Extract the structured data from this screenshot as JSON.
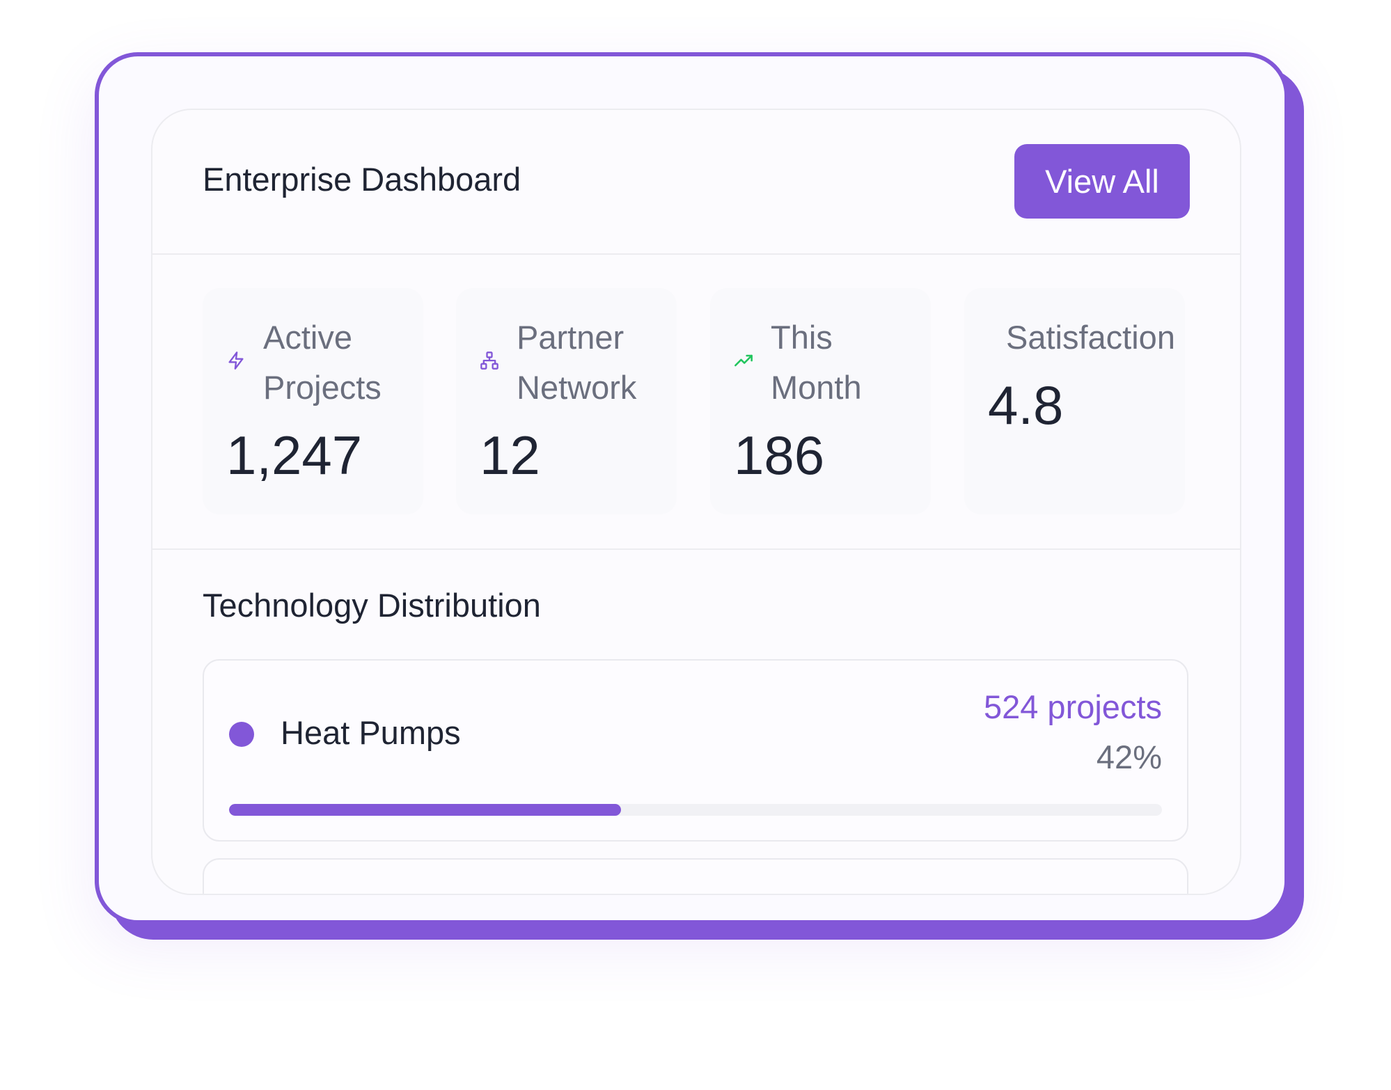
{
  "colors": {
    "accent": "#8257d8",
    "trend_up": "#22c55e",
    "text_primary": "#1f2433",
    "text_secondary": "#6b6f7e"
  },
  "header": {
    "title": "Enterprise Dashboard",
    "view_all_label": "View All"
  },
  "stats": [
    {
      "icon": "lightning-icon",
      "label": "Active Projects",
      "value": "1,247"
    },
    {
      "icon": "network-icon",
      "label": "Partner Network",
      "value": "12"
    },
    {
      "icon": "trending-up-icon",
      "label": "This Month",
      "value": "186"
    },
    {
      "icon": "",
      "label": "Satisfaction",
      "value": "4.8"
    }
  ],
  "technology": {
    "title": "Technology Distribution",
    "items": [
      {
        "name": "Heat Pumps",
        "count": "524 projects",
        "percent_label": "42%",
        "progress": 0.42
      }
    ]
  }
}
